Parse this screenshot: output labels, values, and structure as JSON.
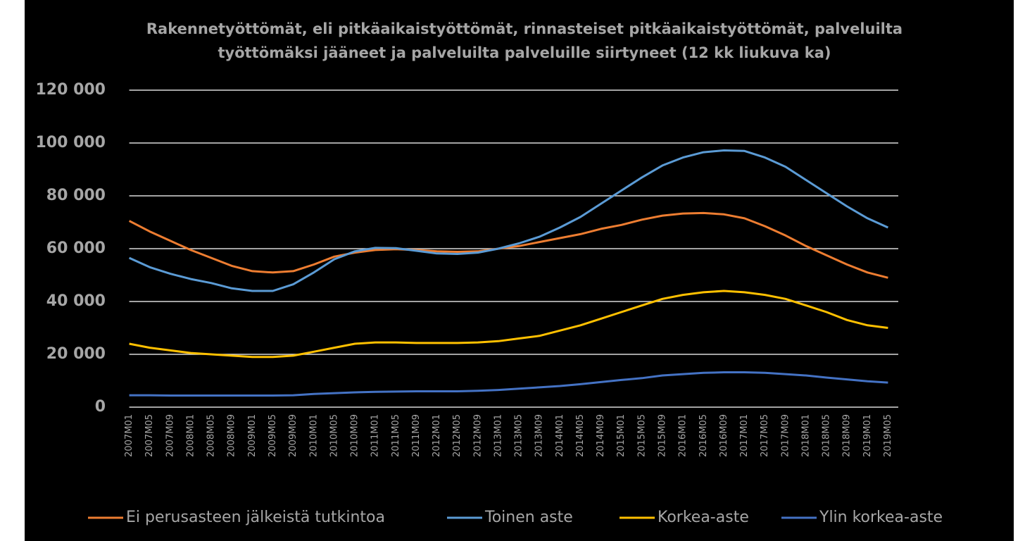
{
  "chart_data": {
    "type": "line",
    "title": [
      "Rakennetyöttömät, eli pitkäaikaistyöttömät, rinnasteiset pitkäaikaistyöttömät, palveluilta",
      "työttömäksi jääneet ja palveluilta palveluille siirtyneet (12 kk liukuva ka)"
    ],
    "categories": [
      "2007M01",
      "2007M05",
      "2007M09",
      "2008M01",
      "2008M05",
      "2008M09",
      "2009M01",
      "2009M05",
      "2009M09",
      "2010M01",
      "2010M05",
      "2010M09",
      "2011M01",
      "2011M05",
      "2011M09",
      "2012M01",
      "2012M05",
      "2012M09",
      "2013M01",
      "2013M05",
      "2013M09",
      "2014M01",
      "2014M05",
      "2014M09",
      "2015M01",
      "2015M05",
      "2015M09",
      "2016M01",
      "2016M05",
      "2016M09",
      "2017M01",
      "2017M05",
      "2017M09",
      "2018M01",
      "2018M05",
      "2018M09",
      "2019M01",
      "2019M05"
    ],
    "series": [
      {
        "name": "Ei perusasteen jälkeistä tutkintoa",
        "color": "#ed7d31",
        "values": [
          70500,
          66500,
          63000,
          59500,
          56500,
          53500,
          51500,
          51000,
          51500,
          54000,
          57000,
          58500,
          59500,
          59800,
          59500,
          59000,
          58800,
          59000,
          60000,
          61000,
          62500,
          64000,
          65500,
          67500,
          69000,
          71000,
          72500,
          73300,
          73500,
          73000,
          71500,
          68500,
          65000,
          61000,
          57500,
          54000,
          51000,
          49000
        ]
      },
      {
        "name": "Toinen aste",
        "color": "#5b9bd5",
        "values": [
          56500,
          53000,
          50500,
          48500,
          47000,
          45000,
          44000,
          44000,
          46500,
          51000,
          56000,
          59000,
          60300,
          60200,
          59200,
          58200,
          58000,
          58500,
          60000,
          62000,
          64500,
          68000,
          72000,
          77000,
          82000,
          87000,
          91500,
          94500,
          96500,
          97200,
          97000,
          94500,
          91000,
          86000,
          81000,
          76000,
          71500,
          68000
        ]
      },
      {
        "name": "Korkea-aste",
        "color": "#ffc000",
        "values": [
          24000,
          22500,
          21500,
          20500,
          20000,
          19500,
          19000,
          19000,
          19500,
          21000,
          22500,
          24000,
          24500,
          24500,
          24300,
          24300,
          24300,
          24500,
          25000,
          26000,
          27000,
          29000,
          31000,
          33500,
          36000,
          38500,
          41000,
          42500,
          43500,
          44000,
          43500,
          42500,
          41000,
          38500,
          36000,
          33000,
          31000,
          30000
        ]
      },
      {
        "name": "Ylin korkea-aste",
        "color": "#4472c4",
        "values": [
          4500,
          4500,
          4400,
          4400,
          4400,
          4400,
          4400,
          4400,
          4500,
          5000,
          5300,
          5600,
          5800,
          5900,
          6000,
          6000,
          6000,
          6200,
          6500,
          7000,
          7500,
          8000,
          8700,
          9500,
          10300,
          11000,
          12000,
          12500,
          13000,
          13200,
          13200,
          13000,
          12500,
          12000,
          11200,
          10500,
          9800,
          9300
        ]
      }
    ],
    "ylim": [
      0,
      120000
    ],
    "yticks": [
      0,
      {
        "value": 20000,
        "label": "20 000"
      },
      {
        "value": 40000,
        "label": "40 000"
      },
      {
        "value": 60000,
        "label": "60 000"
      },
      {
        "value": 80000,
        "label": "80 000"
      },
      {
        "value": 100000,
        "label": "100 000"
      },
      {
        "value": 120000,
        "label": "120 000"
      }
    ],
    "grid": true,
    "legend": "bottom"
  }
}
